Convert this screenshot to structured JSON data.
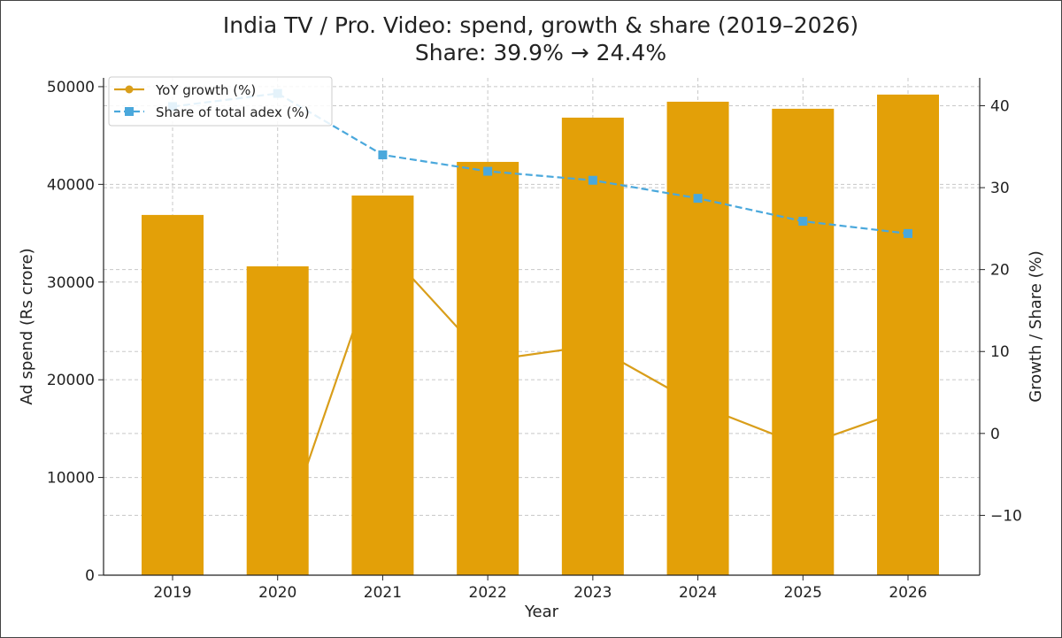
{
  "chart_data": {
    "type": "bar+line",
    "title": "India TV / Pro. Video: spend, growth & share (2019–2026)",
    "subtitle": "Share: 39.9% → 24.4%",
    "xlabel": "Year",
    "ylabel": "Ad spend (Rs crore)",
    "y2label": "Growth / Share (%)",
    "categories": [
      "2019",
      "2020",
      "2021",
      "2022",
      "2023",
      "2024",
      "2025",
      "2026"
    ],
    "ylim": [
      0,
      50900
    ],
    "yticks": [
      0,
      10000,
      20000,
      30000,
      40000,
      50000
    ],
    "y2lim": [
      -17.3,
      43.4
    ],
    "y2ticks": [
      -10,
      0,
      10,
      20,
      30,
      40
    ],
    "grid": true,
    "legend_position": "top-left",
    "bars": {
      "values": [
        36870,
        31610,
        38860,
        42300,
        46830,
        48460,
        47740,
        49190
      ],
      "color": "#E3A008"
    },
    "series": [
      {
        "name": "YoY growth (%)",
        "axis": "right",
        "style": "solid",
        "marker": "circle",
        "color": "#D99E1A",
        "values": [
          null,
          -14.3,
          22.9,
          8.9,
          10.7,
          3.5,
          -1.5,
          3.0
        ]
      },
      {
        "name": "Share of total adex (%)",
        "axis": "right",
        "style": "dashed",
        "marker": "square",
        "color": "#4AA8DC",
        "values": [
          39.9,
          41.5,
          34.0,
          32.0,
          30.9,
          28.7,
          25.9,
          24.4
        ]
      }
    ]
  }
}
